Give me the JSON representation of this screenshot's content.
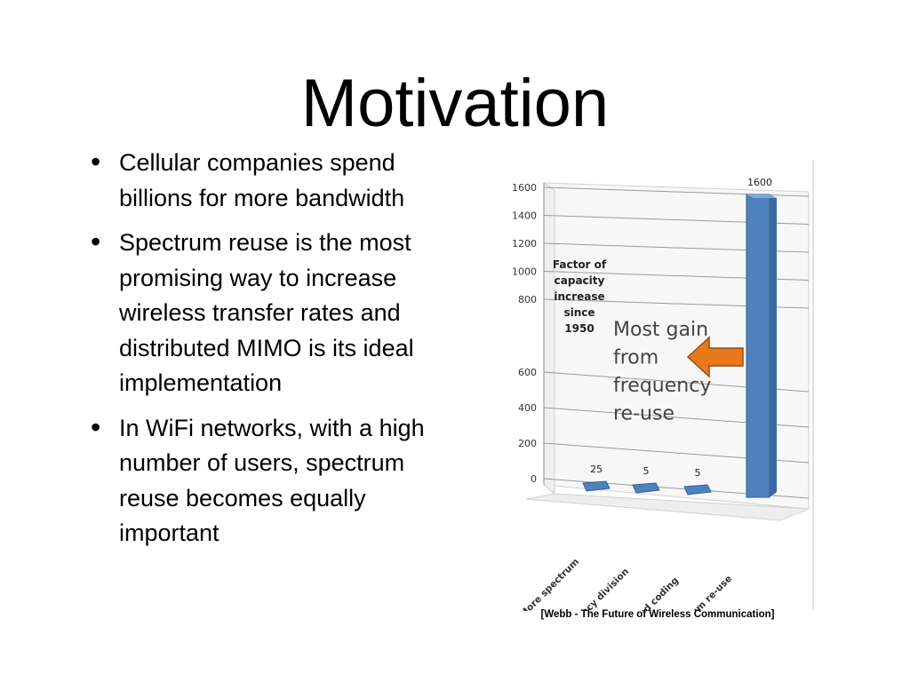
{
  "slide": {
    "title": "Motivation",
    "bullets": [
      "Cellular companies spend billions for more bandwidth",
      "Spectrum reuse is the most promising way to increase wireless transfer rates and distributed MIMO is its ideal implementation",
      "In WiFi networks, with a high number of users, spectrum reuse becomes equally important"
    ],
    "bullet_symbol": "•",
    "citation": "[Webb - The Future of Wireless Communication]"
  },
  "chart_data": {
    "type": "bar",
    "categories": [
      "More spectrum",
      "Frequency division",
      "Modulation and coding",
      "Spectrum re-use"
    ],
    "values": [
      25,
      5,
      5,
      1600
    ],
    "data_labels": [
      "25",
      "5",
      "5",
      "1600"
    ],
    "ylim": [
      0,
      1600
    ],
    "y_ticks": [
      0,
      200,
      400,
      600,
      800,
      1000,
      1200,
      1400,
      1600
    ],
    "ylabel": "Factor of capacity increase since 1950",
    "ylabel_lines": [
      "Factor of",
      "capacity",
      "increase",
      "since",
      "1950"
    ],
    "annotation": {
      "lines": [
        "Most gain",
        "from",
        "frequency",
        "re-use"
      ],
      "arrow_color": "#E8781E"
    },
    "bar_color": "#4F81BD",
    "grid": true,
    "style": "3d",
    "legend": "none"
  }
}
